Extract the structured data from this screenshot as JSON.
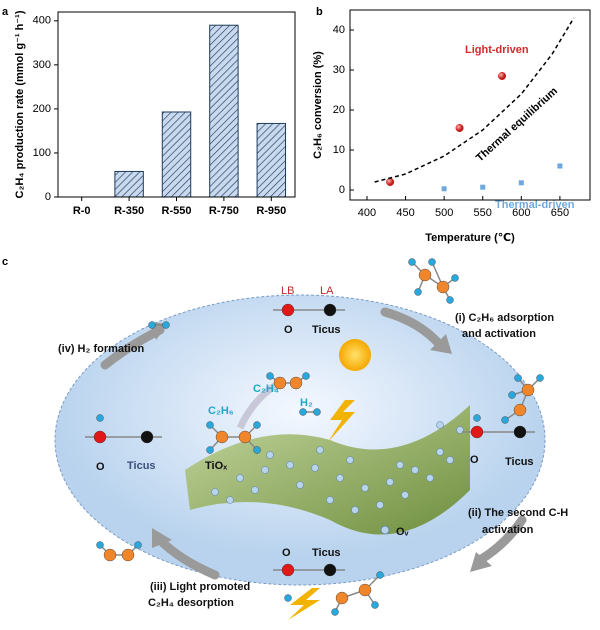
{
  "chart_data": [
    {
      "type": "bar",
      "panel": "a",
      "ylabel": "C₂H₄ production rate (mmol g⁻¹ h⁻¹)",
      "categories": [
        "R-0",
        "R-350",
        "R-550",
        "R-750",
        "R-950"
      ],
      "values": [
        0,
        58,
        193,
        390,
        167
      ],
      "color": "#c9d9ee",
      "ylim": [
        0,
        420
      ],
      "yticks": [
        0,
        100,
        200,
        300,
        400
      ]
    },
    {
      "type": "scatter",
      "panel": "b",
      "xlabel": "Temperature (℃)",
      "ylabel": "C₂H₆ conversion (%)",
      "xlim": [
        378,
        689
      ],
      "xticks": [
        400,
        450,
        500,
        550,
        600,
        650
      ],
      "ylim": [
        -2.5,
        45
      ],
      "yticks": [
        0,
        10,
        20,
        30,
        40
      ],
      "series": [
        {
          "name": "Light-driven",
          "color": "#d42a2a",
          "marker": "circle",
          "x": [
            430,
            520,
            575
          ],
          "values": [
            2,
            15.5,
            28.5
          ]
        },
        {
          "name": "Thermal-driven",
          "color": "#6fa8dc",
          "marker": "square",
          "x": [
            500,
            550,
            600,
            650
          ],
          "values": [
            0.3,
            0.7,
            1.8,
            6
          ]
        },
        {
          "name": "Thermal equilibrium",
          "color": "#000000",
          "line": "dashed",
          "x": [
            410,
            450,
            500,
            550,
            600,
            640,
            668
          ],
          "values": [
            2,
            4,
            8.5,
            15,
            24,
            34,
            43
          ]
        }
      ]
    }
  ],
  "diagram": {
    "panel": "c",
    "labels": [
      "LB",
      "LA",
      "O",
      "Ticus",
      "(i) C₂H₆ adsorption",
      "and activation",
      "(iv) H₂ formation",
      "C₂H₄",
      "H₂",
      "C₂H₆",
      "O",
      "Ticus",
      "TiOₓ",
      "O",
      "Ticus",
      "(ii) The second C-H",
      "activation",
      "Oᵥ",
      "O",
      "Ticus",
      "(iii) Light promoted",
      "C₂H₄ desorption"
    ]
  }
}
